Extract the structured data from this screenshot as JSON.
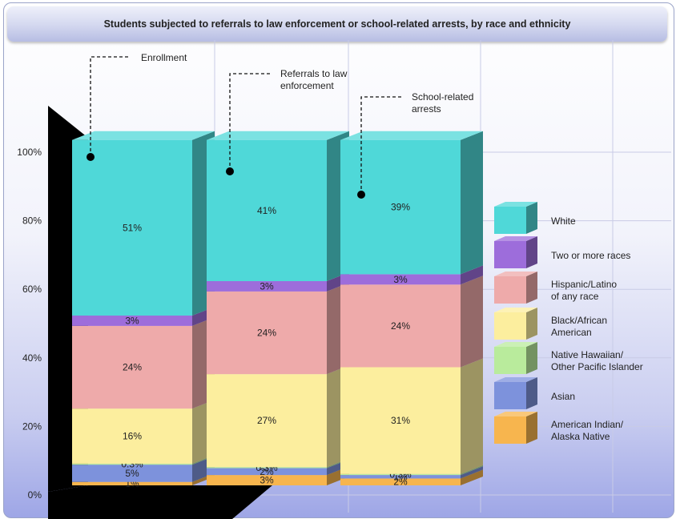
{
  "chart_data": {
    "type": "bar",
    "stacked": true,
    "percent_stacked": true,
    "title": "Students subjected to referrals to law enforcement or school-related arrests, by race and ethnicity",
    "xlabel": "",
    "ylabel": "",
    "ylim": [
      0,
      100
    ],
    "y_ticks": [
      "0%",
      "20%",
      "40%",
      "60%",
      "80%",
      "100%"
    ],
    "categories": [
      "Enrollment",
      "Referrals to law enforcement",
      "School-related arrests"
    ],
    "annotations": [
      "Enrollment",
      "Referrals to law enforcement",
      "School-related arrests"
    ],
    "legend_position": "right",
    "series": [
      {
        "name": "American Indian/ Alaska Native",
        "color": "#f7b54e",
        "values": [
          1,
          3,
          2
        ],
        "labels": [
          "1%",
          "3%",
          "2%"
        ]
      },
      {
        "name": "Asian",
        "color": "#7d92dc",
        "values": [
          5,
          2,
          1
        ],
        "labels": [
          "5%",
          "2%",
          "1%"
        ]
      },
      {
        "name": "Native Hawaiian/ Other Pacific Islander",
        "color": "#b9eb9c",
        "values": [
          0.3,
          0.3,
          0.3
        ],
        "labels": [
          "0.3%",
          "0.3%",
          "0.3%"
        ]
      },
      {
        "name": "Black/African American",
        "color": "#fcee9e",
        "values": [
          16,
          27,
          31
        ],
        "labels": [
          "16%",
          "27%",
          "31%"
        ]
      },
      {
        "name": "Hispanic/Latino of any race",
        "color": "#eeaaaa",
        "values": [
          24,
          24,
          24
        ],
        "labels": [
          "24%",
          "24%",
          "24%"
        ]
      },
      {
        "name": "Two or more races",
        "color": "#9d6ddb",
        "values": [
          3,
          3,
          3
        ],
        "labels": [
          "3%",
          "3%",
          "3%"
        ]
      },
      {
        "name": "White",
        "color": "#4fd8d8",
        "values": [
          51,
          41,
          39
        ],
        "labels": [
          "51%",
          "41%",
          "39%"
        ]
      }
    ],
    "legend_order": [
      "White",
      "Two or more races",
      "Hispanic/Latino of any race",
      "Black/African American",
      "Native Hawaiian/ Other Pacific Islander",
      "Asian",
      "American Indian/ Alaska Native"
    ]
  }
}
